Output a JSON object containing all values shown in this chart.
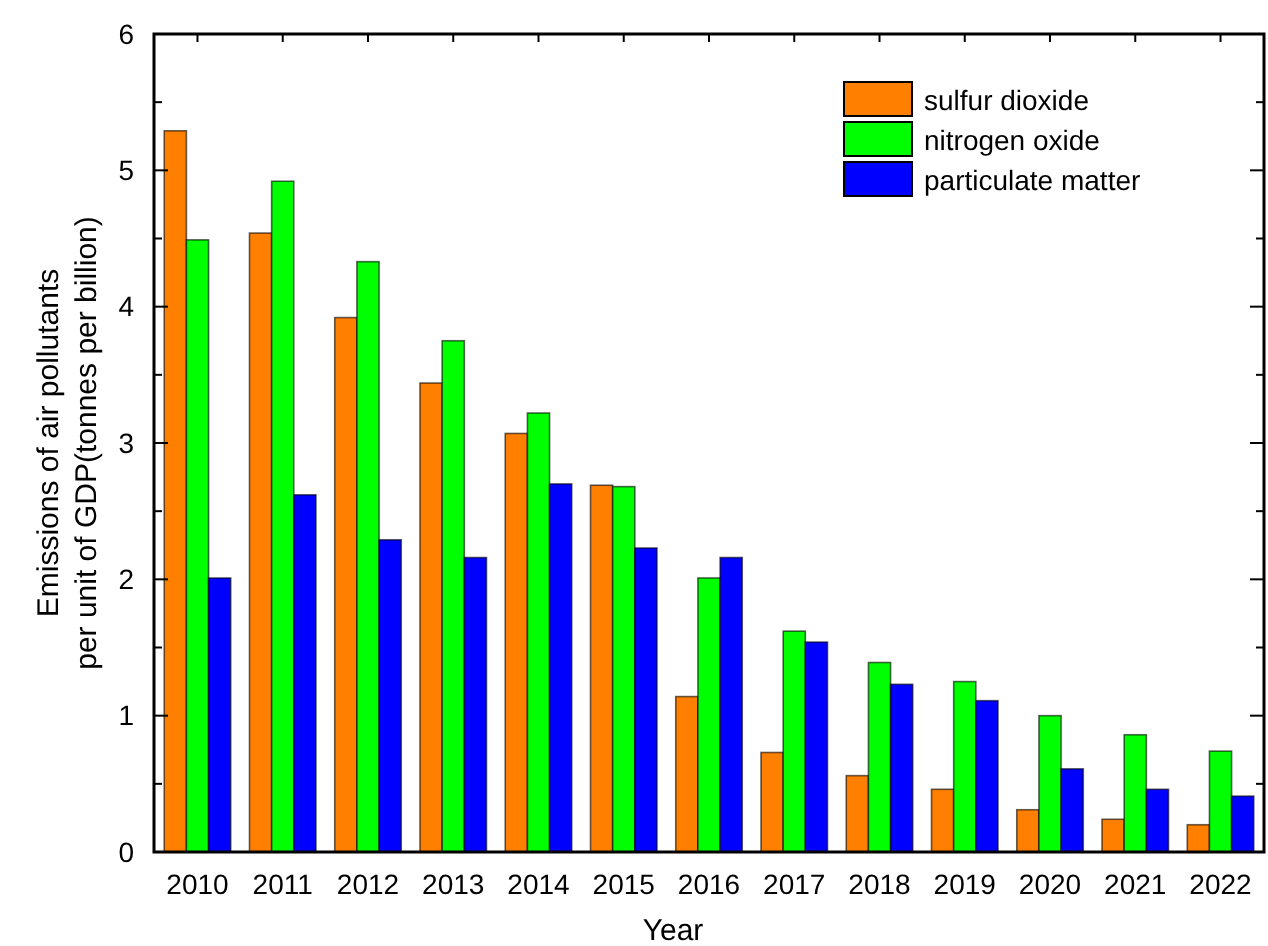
{
  "chart_data": {
    "type": "bar",
    "xlabel": "Year",
    "ylabel": "Emissions of air pollutants\nper unit of GDP(tonnes per billion)",
    "categories": [
      "2010",
      "2011",
      "2012",
      "2013",
      "2014",
      "2015",
      "2016",
      "2017",
      "2018",
      "2019",
      "2020",
      "2021",
      "2022"
    ],
    "series": [
      {
        "name": "sulfur dioxide",
        "color": "#ff8000",
        "values": [
          5.29,
          4.54,
          3.92,
          3.44,
          3.07,
          2.69,
          1.14,
          0.73,
          0.56,
          0.46,
          0.31,
          0.24,
          0.2
        ]
      },
      {
        "name": "nitrogen oxide",
        "color": "#00ff00",
        "values": [
          4.49,
          4.92,
          4.33,
          3.75,
          3.22,
          2.68,
          2.01,
          1.62,
          1.39,
          1.25,
          1.0,
          0.86,
          0.74
        ]
      },
      {
        "name": "particulate matter",
        "color": "#0000ff",
        "values": [
          2.01,
          2.62,
          2.29,
          2.16,
          2.7,
          2.23,
          2.16,
          1.54,
          1.23,
          1.11,
          0.61,
          0.46,
          0.41
        ]
      }
    ],
    "ylim": [
      0,
      6
    ],
    "yticks": [
      0,
      {
        "value": 0.5,
        "label": null
      },
      1,
      {
        "value": 1.5,
        "label": null
      },
      2,
      {
        "value": 2.5,
        "label": null
      },
      3,
      {
        "value": 3.5,
        "label": null
      },
      4,
      {
        "value": 4.5,
        "label": null
      },
      5,
      {
        "value": 5.5,
        "label": null
      },
      6
    ],
    "grid": false,
    "legend": "top right"
  }
}
